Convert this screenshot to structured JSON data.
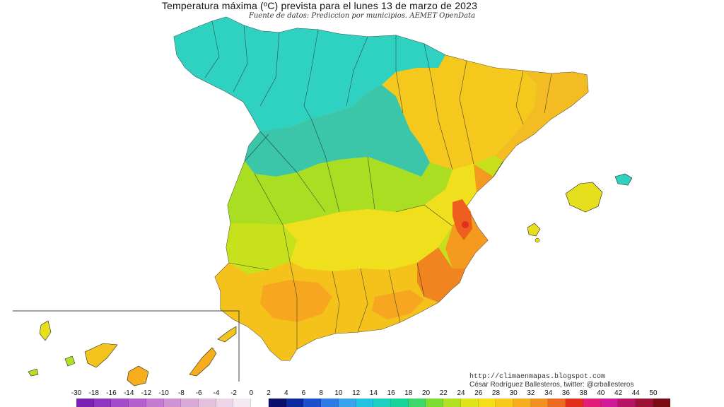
{
  "title": "Temperatura máxima (ºC) prevista para el lunes 13 de marzo de 2023",
  "subtitle": "Fuente de datos: Prediccion por municipios. AEMET OpenData",
  "credits": {
    "blog": "http://climaenmapas.blogspot.com",
    "author": "César Rodríguez Ballesteros, twitter: @crballesteros"
  },
  "legend": {
    "unit": "ºC",
    "ticks": [
      "-30",
      "-18",
      "-16",
      "-14",
      "-12",
      "-10",
      "-8",
      "-6",
      "-4",
      "-2",
      "0",
      "2",
      "4",
      "6",
      "8",
      "10",
      "12",
      "14",
      "16",
      "18",
      "20",
      "22",
      "24",
      "26",
      "28",
      "30",
      "32",
      "34",
      "36",
      "38",
      "40",
      "42",
      "44",
      "50"
    ],
    "colors": [
      "#7b22b5",
      "#8e35c1",
      "#a24bcb",
      "#b461cf",
      "#c47bd2",
      "#cf93d4",
      "#d9aad8",
      "#e2c1dd",
      "#ebd7e7",
      "#f3ebf1",
      "#ffffff",
      "#0b0f6b",
      "#0b2aa0",
      "#1a4fd0",
      "#2d7ce6",
      "#37a4ee",
      "#21c4e0",
      "#1ed0c0",
      "#19d49a",
      "#3fd66a",
      "#7ddc32",
      "#b2e022",
      "#dfe51a",
      "#f4de19",
      "#f8c81a",
      "#f7ae1d",
      "#f39022",
      "#ee6a20",
      "#e2301c",
      "#e21e78",
      "#d01a9a",
      "#b81466",
      "#9c1235",
      "#7a0d12"
    ]
  },
  "map": {
    "region_colors": {
      "galicia_cantabrico": "#2fd2c0",
      "meseta_norte": "#3cc6a9",
      "valle_ebro": "#f5c81e",
      "cataluna": "#f3bc22",
      "centro": "#aade22",
      "extremadura": "#c7e21c",
      "mancha": "#f0df1c",
      "andalucia": "#f5c21c",
      "guadalquivir": "#f6a71f",
      "levante": "#f49a1f",
      "valencia_hot": "#ee5e1e",
      "murcia": "#f0841f",
      "baleares": "#e6df1e",
      "canarias": "#f2c41d"
    }
  }
}
